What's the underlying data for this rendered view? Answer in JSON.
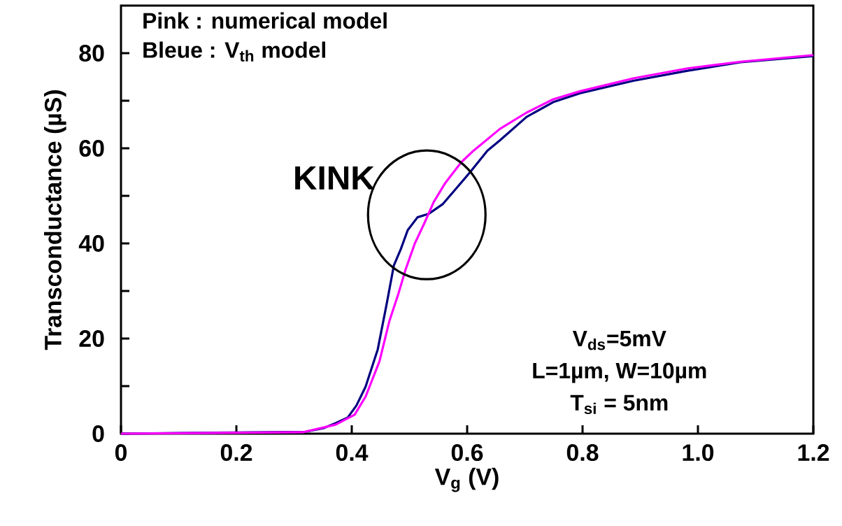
{
  "chart_data": {
    "type": "line",
    "xlabel": "V$_{g}$ (V)",
    "ylabel": "Transconductance (µS)",
    "xlim": [
      0,
      1.2
    ],
    "ylim": [
      0,
      90
    ],
    "xticks": [
      0,
      0.2,
      0.4,
      0.6,
      0.8,
      {
        "value": 1.0,
        "label": "1.0"
      },
      1.2
    ],
    "yticks": [
      0,
      {
        "value": 10,
        "label": null
      },
      20,
      {
        "value": 30,
        "label": null
      },
      40,
      {
        "value": 50,
        "label": null
      },
      60,
      {
        "value": 70,
        "label": null
      },
      80
    ],
    "grid": false,
    "legend": false,
    "marker": "none",
    "line_style": "solid",
    "annotations": [
      "Pink : numerical model",
      "Bleue : V$_{th}$ model",
      {
        "text": "KINK",
        "x": 0.53,
        "y": 46
      },
      "V$_{ds}$=5mV",
      "L=1µm, W=10µm",
      "T$_{si}$ = 5nm"
    ],
    "series": [
      {
        "color": "#000080",
        "x": [
          0,
          0.32,
          0.352,
          0.372,
          0.393,
          0.408,
          0.424,
          0.445,
          0.461,
          0.473,
          0.485,
          0.497,
          0.514,
          0.533,
          0.558,
          0.582,
          0.606,
          0.635,
          0.657,
          0.703,
          0.749,
          0.796,
          0.888,
          0.982,
          1.074,
          1.2
        ],
        "values": [
          0,
          0.4,
          1.2,
          2.2,
          3.4,
          5.9,
          9.9,
          17.7,
          27.6,
          35.4,
          38.8,
          42.8,
          45.5,
          46.2,
          48.3,
          51.7,
          55.1,
          59.5,
          61.7,
          66.6,
          69.7,
          71.6,
          74.2,
          76.3,
          78.1,
          79.4
        ]
      },
      {
        "color": "#ff00ff",
        "x": [
          0,
          0.315,
          0.372,
          0.405,
          0.424,
          0.448,
          0.465,
          0.481,
          0.493,
          0.509,
          0.526,
          0.542,
          0.562,
          0.59,
          0.611,
          0.657,
          0.703,
          0.749,
          0.796,
          0.888,
          0.982,
          1.074,
          1.2
        ],
        "values": [
          0,
          0.3,
          1.9,
          4.0,
          7.8,
          15.2,
          23.6,
          29.5,
          34.4,
          39.9,
          44.3,
          48.7,
          52.7,
          57.1,
          59.5,
          64.1,
          67.5,
          70.3,
          72.0,
          74.7,
          76.8,
          78.2,
          79.6
        ]
      }
    ]
  }
}
